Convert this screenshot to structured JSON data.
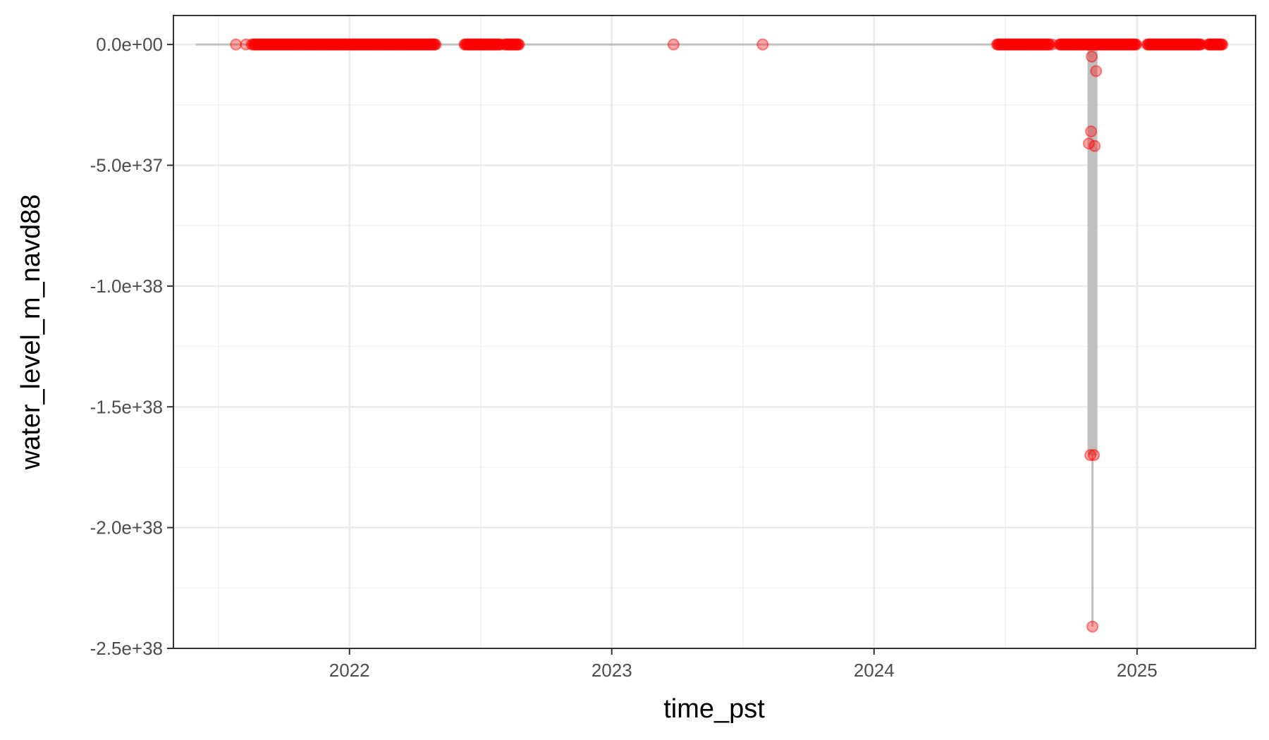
{
  "chart_data": {
    "type": "scatter",
    "xlabel": "time_pst",
    "ylabel": "water_level_m_navd88",
    "xlim": [
      "2021-05-01",
      "2025-06-15"
    ],
    "ylim": [
      -2.5e+38,
      1.2e+37
    ],
    "x_ticks": [
      {
        "value": "2022-01-01",
        "label": "2022"
      },
      {
        "value": "2023-01-01",
        "label": "2023"
      },
      {
        "value": "2024-01-01",
        "label": "2024"
      },
      {
        "value": "2025-01-01",
        "label": "2025"
      }
    ],
    "y_ticks": [
      {
        "value": 0,
        "label": "0.0e+00"
      },
      {
        "value": -5e+37,
        "label": "-5.0e+37"
      },
      {
        "value": -1e+38,
        "label": "-1.0e+38"
      },
      {
        "value": -1.5e+38,
        "label": "-1.5e+38"
      },
      {
        "value": -2e+38,
        "label": "-2.0e+38"
      },
      {
        "value": -2.5e+38,
        "label": "-2.5e+38"
      }
    ],
    "grid": true,
    "line_color": "#bfbfbf",
    "point_color": "#ff0000",
    "baseline_line": {
      "x_start": "2021-06-01",
      "x_end": "2025-04-30",
      "y": 0
    },
    "outlier_spike": {
      "x": "2024-10-31",
      "y_min": -2.41e+38,
      "y_max": 0
    },
    "zero_ranges": [
      {
        "from": "2021-08-20",
        "to": "2022-05-01"
      },
      {
        "from": "2022-06-10",
        "to": "2022-07-30"
      },
      {
        "from": "2022-08-05",
        "to": "2022-08-25"
      },
      {
        "from": "2024-06-20",
        "to": "2024-08-31"
      },
      {
        "from": "2024-09-15",
        "to": "2024-12-31"
      },
      {
        "from": "2025-01-15",
        "to": "2025-03-31"
      },
      {
        "from": "2025-04-10",
        "to": "2025-04-30"
      }
    ],
    "points": [
      {
        "x": "2021-07-27",
        "y": 0
      },
      {
        "x": "2021-08-10",
        "y": 0
      },
      {
        "x": "2021-08-18",
        "y": 0
      },
      {
        "x": "2023-03-28",
        "y": 0
      },
      {
        "x": "2023-07-30",
        "y": 0
      },
      {
        "x": "2024-09-01",
        "y": 0
      },
      {
        "x": "2024-09-05",
        "y": 0
      },
      {
        "x": "2024-10-30",
        "y": -5e+36
      },
      {
        "x": "2024-11-05",
        "y": -1.1e+37
      },
      {
        "x": "2024-10-29",
        "y": -3.6e+37
      },
      {
        "x": "2024-10-26",
        "y": -4.1e+37
      },
      {
        "x": "2024-11-03",
        "y": -4.2e+37
      },
      {
        "x": "2024-10-28",
        "y": -1.7e+38
      },
      {
        "x": "2024-11-02",
        "y": -1.7e+38
      },
      {
        "x": "2024-10-31",
        "y": -2.41e+38
      }
    ]
  }
}
